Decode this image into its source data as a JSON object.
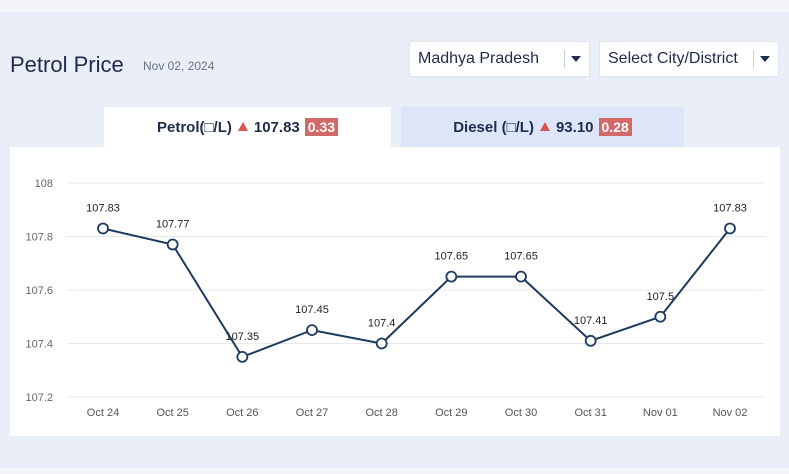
{
  "header": {
    "title": "Petrol Price",
    "date": "Nov 02, 2024",
    "state_select": "Madhya Pradesh",
    "city_select": "Select City/District"
  },
  "tabs": {
    "petrol": {
      "label": "Petrol(□/L)",
      "price": "107.83",
      "change": "0.33"
    },
    "diesel": {
      "label": "Diesel (□/L)",
      "price": "93.10",
      "change": "0.28"
    }
  },
  "colors": {
    "line": "#1f3a5f",
    "increase": "#d9534f",
    "badge": "#d16a66",
    "grid": "#e6e9ef"
  },
  "chart_data": {
    "type": "line",
    "x": [
      "Oct 24",
      "Oct 25",
      "Oct 26",
      "Oct 27",
      "Oct 28",
      "Oct 29",
      "Oct 30",
      "Oct 31",
      "Nov 01",
      "Nov 02"
    ],
    "series": [
      {
        "values": [
          107.83,
          107.77,
          107.35,
          107.45,
          107.4,
          107.65,
          107.65,
          107.41,
          107.5,
          107.83
        ],
        "labels": [
          "107.83",
          "107.77",
          "107.35",
          "107.45",
          "107.4",
          "107.65",
          "107.65",
          "107.41",
          "107.5",
          "107.83"
        ]
      }
    ],
    "y_ticks": [
      107.2,
      107.4,
      107.6,
      107.8,
      108
    ],
    "y_tick_labels": [
      "107.2",
      "107.4",
      "107.6",
      "107.8",
      "108"
    ],
    "ylim": [
      107.2,
      108
    ],
    "grid": true,
    "legend": "none"
  }
}
